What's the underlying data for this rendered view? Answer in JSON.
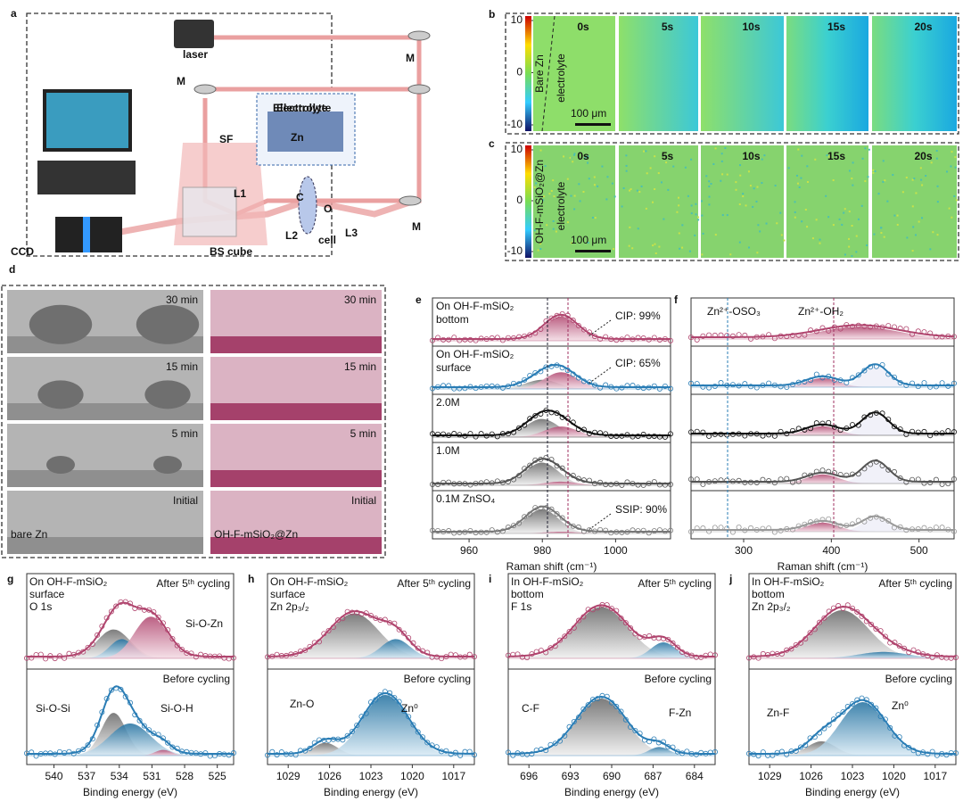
{
  "a": {
    "label": "a",
    "parts": [
      "laser",
      "M",
      "M",
      "SF",
      "Electrolyte",
      "Zn",
      "L1",
      "C",
      "O",
      "L2",
      "cell",
      "L3",
      "M",
      "CCD",
      "BS cube"
    ]
  },
  "b": {
    "label": "b",
    "scale": [
      10,
      0,
      -10
    ],
    "sample": "Bare Zn",
    "region": "electrolyte",
    "times": [
      "0s",
      "5s",
      "10s",
      "15s",
      "20s"
    ],
    "scalebar": "100 μm"
  },
  "c": {
    "label": "c",
    "scale": [
      10,
      0,
      -10
    ],
    "sample": "OH-F-mSiO₂@Zn",
    "region": "electrolyte",
    "times": [
      "0s",
      "5s",
      "10s",
      "15s",
      "20s"
    ],
    "scalebar": "100 μm"
  },
  "d": {
    "label": "d",
    "left": {
      "frames": [
        "30 min",
        "15 min",
        "5 min",
        "Initial"
      ],
      "sample": "bare Zn"
    },
    "right": {
      "frames": [
        "30 min",
        "15 min",
        "5 min",
        "Initial"
      ],
      "sample": "OH-F-mSiO₂@Zn"
    }
  },
  "e": {
    "label": "e",
    "xlabel": "Raman shift (cm⁻¹)",
    "xlim": [
      950,
      1015
    ],
    "xticks": [
      960,
      980,
      1000
    ],
    "rows": [
      [
        "On OH-F-mSiO₂",
        "bottom"
      ],
      [
        "On OH-F-mSiO₂",
        "surface"
      ],
      [
        "2.0M"
      ],
      [
        "1.0M"
      ],
      [
        "0.1M ZnSO₄"
      ]
    ],
    "annotations": [
      "CIP: 99%",
      "CIP: 65%",
      "SSIP: 90%"
    ]
  },
  "f": {
    "label": "f",
    "xlabel": "Raman shift (cm⁻¹)",
    "xlim": [
      240,
      540
    ],
    "xticks": [
      300,
      400,
      500
    ],
    "annotations": [
      "Zn²⁺-OSO₃",
      "Zn²⁺-OH₂"
    ]
  },
  "g": {
    "label": "g",
    "xlabel": "Binding energy (eV)",
    "xlim": [
      542.5,
      523.5
    ],
    "xticks": [
      540,
      537,
      534,
      531,
      528,
      525
    ],
    "sample": [
      "On OH-F-mSiO₂",
      "surface",
      "O 1s"
    ],
    "top": "After 5ᵗʰ cycling",
    "bottom": "Before cycling",
    "annotations": [
      "Si-O-Zn",
      "Si-O-Si",
      "Si-O-H"
    ]
  },
  "h": {
    "label": "h",
    "xlabel": "Binding energy (eV)",
    "xlim": [
      1030.5,
      1015.5
    ],
    "xticks": [
      1029,
      1026,
      1023,
      1020,
      1017
    ],
    "sample": [
      "On OH-F-mSiO₂",
      "surface",
      "Zn 2p₃/₂"
    ],
    "top": "After 5ᵗʰ cycling",
    "bottom": "Before cycling",
    "annotations": [
      "Zn-O",
      "Zn⁰"
    ]
  },
  "i": {
    "label": "i",
    "xlabel": "Binding energy (eV)",
    "xlim": [
      697.5,
      682.5
    ],
    "xticks": [
      696,
      693,
      690,
      687,
      684
    ],
    "sample": [
      "In OH-F-mSiO₂",
      "bottom",
      "F 1s"
    ],
    "top": "After 5ᵗʰ cycling",
    "bottom": "Before cycling",
    "annotations": [
      "C-F",
      "F-Zn"
    ]
  },
  "j": {
    "label": "j",
    "xlabel": "Binding energy (eV)",
    "xlim": [
      1030.5,
      1015.5
    ],
    "xticks": [
      1029,
      1026,
      1023,
      1020,
      1017
    ],
    "sample": [
      "In OH-F-mSiO₂",
      "bottom",
      "Zn 2p₃/₂"
    ],
    "top": "After 5ᵗʰ cycling",
    "bottom": "Before cycling",
    "annotations": [
      "Zn-F",
      "Zn⁰"
    ]
  }
}
